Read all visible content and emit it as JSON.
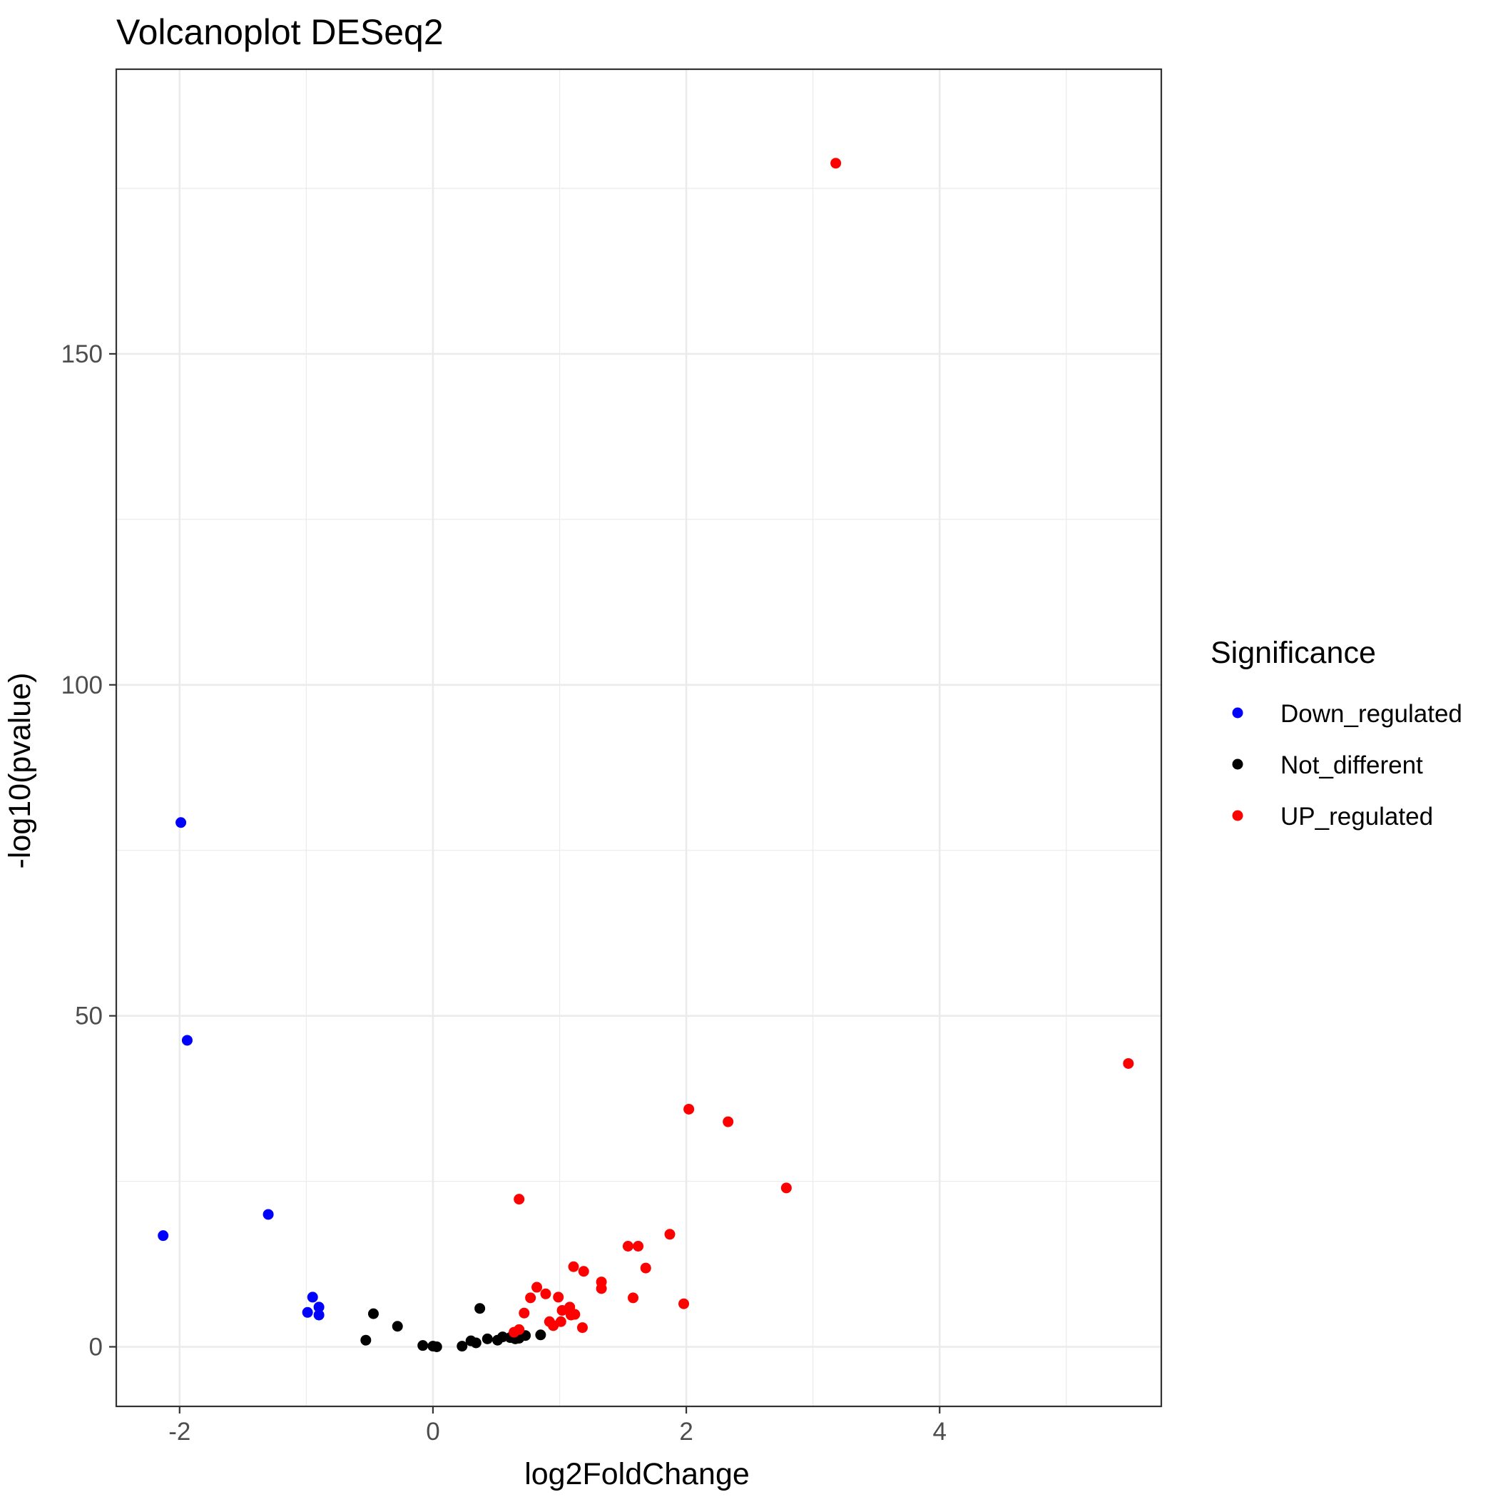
{
  "chart_data": {
    "type": "scatter",
    "title": "Volcanoplot DESeq2",
    "xlabel": "log2FoldChange",
    "ylabel": "-log10(pvalue)",
    "xlim": [
      -2.5,
      5.75
    ],
    "ylim": [
      -9,
      193
    ],
    "x_ticks": [
      -2,
      0,
      2,
      4
    ],
    "x_tick_labels": [
      "-2",
      "0",
      "2",
      "4"
    ],
    "y_ticks": [
      0,
      50,
      100,
      150
    ],
    "y_tick_labels": [
      "0",
      "50",
      "100",
      "150"
    ],
    "grid": true,
    "legend": {
      "title": "Significance",
      "position": "right"
    },
    "series": [
      {
        "name": "Down_regulated",
        "color": "#0000FF",
        "points": [
          [
            -1.99,
            79.2
          ],
          [
            -1.94,
            46.3
          ],
          [
            -2.13,
            16.8
          ],
          [
            -1.3,
            20.0
          ],
          [
            -0.95,
            7.5
          ],
          [
            -0.99,
            5.2
          ],
          [
            -0.9,
            6.0
          ],
          [
            -0.9,
            4.8
          ]
        ]
      },
      {
        "name": "Not_different",
        "color": "#000000",
        "points": [
          [
            -0.53,
            1.0
          ],
          [
            -0.47,
            5.0
          ],
          [
            -0.28,
            3.1
          ],
          [
            -0.08,
            0.2
          ],
          [
            0.0,
            0.1
          ],
          [
            0.03,
            0.0
          ],
          [
            0.23,
            0.1
          ],
          [
            0.3,
            0.9
          ],
          [
            0.34,
            0.6
          ],
          [
            0.37,
            5.8
          ],
          [
            0.43,
            1.2
          ],
          [
            0.51,
            1.0
          ],
          [
            0.55,
            1.5
          ],
          [
            0.61,
            1.4
          ],
          [
            0.65,
            1.2
          ],
          [
            0.68,
            1.3
          ],
          [
            0.73,
            1.7
          ],
          [
            0.85,
            1.8
          ]
        ]
      },
      {
        "name": "UP_regulated",
        "color": "#FF0000",
        "points": [
          [
            3.18,
            178.8
          ],
          [
            5.49,
            42.8
          ],
          [
            2.02,
            35.9
          ],
          [
            2.33,
            34.0
          ],
          [
            2.79,
            24.0
          ],
          [
            0.68,
            22.3
          ],
          [
            1.87,
            17.0
          ],
          [
            1.54,
            15.2
          ],
          [
            1.62,
            15.2
          ],
          [
            1.11,
            12.1
          ],
          [
            1.19,
            11.4
          ],
          [
            1.68,
            11.9
          ],
          [
            1.33,
            9.8
          ],
          [
            1.33,
            8.8
          ],
          [
            0.82,
            9.0
          ],
          [
            0.89,
            8.0
          ],
          [
            0.99,
            7.5
          ],
          [
            0.77,
            7.4
          ],
          [
            1.58,
            7.4
          ],
          [
            1.98,
            6.5
          ],
          [
            1.08,
            6.0
          ],
          [
            1.02,
            5.5
          ],
          [
            0.72,
            5.1
          ],
          [
            1.09,
            4.8
          ],
          [
            1.12,
            4.9
          ],
          [
            0.92,
            3.8
          ],
          [
            1.01,
            3.8
          ],
          [
            0.95,
            3.2
          ],
          [
            1.18,
            2.9
          ],
          [
            0.68,
            2.6
          ],
          [
            0.64,
            2.2
          ]
        ]
      }
    ]
  }
}
